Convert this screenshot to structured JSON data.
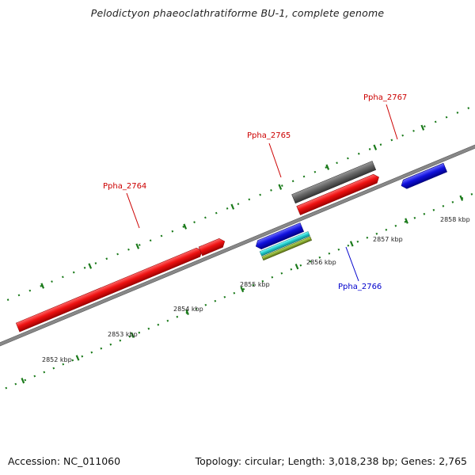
{
  "title": "Pelodictyon phaeoclathratiforme BU-1, complete genome",
  "footer": {
    "accession": "Accession: NC_011060",
    "summary": "Topology: circular; Length: 3,018,238 bp; Genes: 2,765"
  },
  "colors": {
    "backbone": "#888888",
    "tick": "#1a7a1a",
    "red_gene": "#ee1111",
    "blue_gene": "#1111dd",
    "cyan_feature": "#22cccc",
    "olive_feature": "#88aa33",
    "gray_gene": "#666666",
    "label_red": "#cc0000",
    "label_blue": "#0000cc"
  },
  "scale_labels": [
    "2852 kbp",
    "2853 kbp",
    "2854 kbp",
    "2855 kbp",
    "2856 kbp",
    "2857 kbp",
    "2858 kbp"
  ],
  "gene_labels": {
    "ppha_2764": "Ppha_2764",
    "ppha_2765": "Ppha_2765",
    "ppha_2766": "Ppha_2766",
    "ppha_2767": "Ppha_2767"
  }
}
